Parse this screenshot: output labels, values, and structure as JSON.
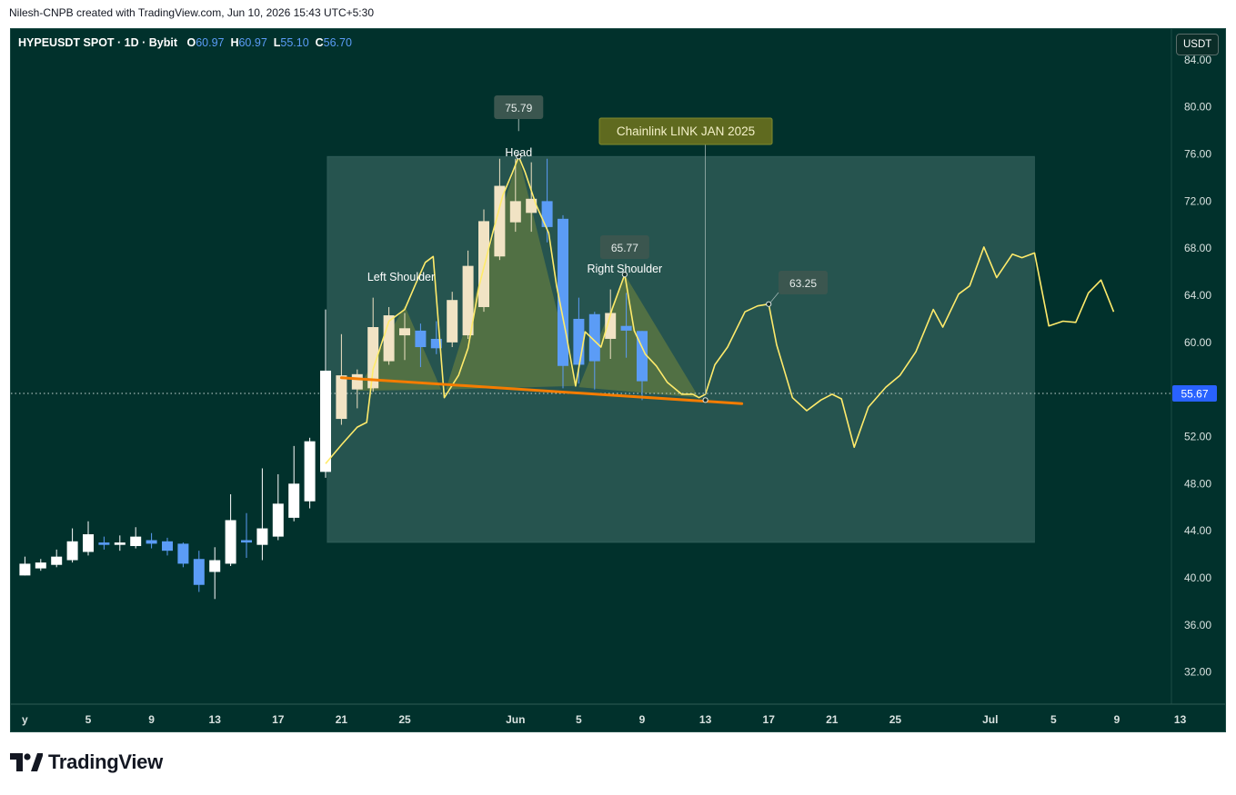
{
  "header": {
    "attribution": "Nilesh-CNPB created with TradingView.com, Jun 10, 2026 15:43 UTC+5:30"
  },
  "legend": {
    "symbol": "HYPEUSDT SPOT · 1D · Bybit",
    "open_label": "O",
    "open": "60.97",
    "high_label": "H",
    "high": "60.97",
    "low_label": "L",
    "low": "55.10",
    "close_label": "C",
    "close": "56.70"
  },
  "currency_button": "USDT",
  "brand": {
    "name": "TradingView"
  },
  "colors": {
    "background": "#01312c",
    "bull_candle": "#ffffff",
    "bear_candle": "#5b9cf6",
    "overlay_candle": "#f1e3c4",
    "overlay_line": "#ffeb6b",
    "neckline": "#f57c00",
    "price_tag": "#2962ff"
  },
  "chart_data": {
    "type": "candlestick",
    "title": "",
    "y_axis": {
      "side": "right",
      "ticks": [
        "84.00",
        "80.00",
        "76.00",
        "72.00",
        "68.00",
        "64.00",
        "60.00",
        "56.00",
        "52.00",
        "48.00",
        "44.00",
        "40.00",
        "36.00",
        "32.00"
      ],
      "range": [
        29.5,
        86
      ]
    },
    "x_axis": {
      "ticks": [
        {
          "label": "y",
          "day": 1
        },
        {
          "label": "5",
          "day": 5
        },
        {
          "label": "9",
          "day": 9
        },
        {
          "label": "13",
          "day": 13
        },
        {
          "label": "17",
          "day": 17
        },
        {
          "label": "21",
          "day": 21
        },
        {
          "label": "25",
          "day": 25
        },
        {
          "label": "Jun",
          "day": 32
        },
        {
          "label": "5",
          "day": 36
        },
        {
          "label": "9",
          "day": 40
        },
        {
          "label": "13",
          "day": 44
        },
        {
          "label": "17",
          "day": 48
        },
        {
          "label": "21",
          "day": 52
        },
        {
          "label": "25",
          "day": 56
        },
        {
          "label": "Jul",
          "day": 62
        },
        {
          "label": "5",
          "day": 66
        },
        {
          "label": "9",
          "day": 70
        },
        {
          "label": "13",
          "day": 74
        }
      ]
    },
    "candles": [
      {
        "day": 1,
        "o": 40.2,
        "h": 41.8,
        "l": 40.2,
        "c": 41.2
      },
      {
        "day": 2,
        "o": 40.8,
        "h": 41.6,
        "l": 40.6,
        "c": 41.3
      },
      {
        "day": 3,
        "o": 41.1,
        "h": 42.4,
        "l": 40.9,
        "c": 41.8
      },
      {
        "day": 4,
        "o": 41.5,
        "h": 44.2,
        "l": 41.3,
        "c": 43.1
      },
      {
        "day": 5,
        "o": 42.2,
        "h": 44.8,
        "l": 41.9,
        "c": 43.7
      },
      {
        "day": 6,
        "o": 43.0,
        "h": 43.5,
        "l": 42.4,
        "c": 42.8
      },
      {
        "day": 7,
        "o": 42.8,
        "h": 43.6,
        "l": 42.3,
        "c": 43.0
      },
      {
        "day": 8,
        "o": 42.7,
        "h": 44.3,
        "l": 42.5,
        "c": 43.5
      },
      {
        "day": 9,
        "o": 43.2,
        "h": 43.8,
        "l": 42.5,
        "c": 42.9
      },
      {
        "day": 10,
        "o": 43.1,
        "h": 43.4,
        "l": 41.9,
        "c": 42.3
      },
      {
        "day": 11,
        "o": 42.9,
        "h": 43.0,
        "l": 40.9,
        "c": 41.2
      },
      {
        "day": 12,
        "o": 41.6,
        "h": 42.3,
        "l": 38.8,
        "c": 39.4
      },
      {
        "day": 13,
        "o": 40.5,
        "h": 42.6,
        "l": 38.2,
        "c": 41.5
      },
      {
        "day": 14,
        "o": 41.2,
        "h": 47.1,
        "l": 41.0,
        "c": 44.9
      },
      {
        "day": 15,
        "o": 43.2,
        "h": 45.5,
        "l": 41.7,
        "c": 43.0
      },
      {
        "day": 16,
        "o": 42.8,
        "h": 49.3,
        "l": 41.5,
        "c": 44.2
      },
      {
        "day": 17,
        "o": 43.5,
        "h": 48.8,
        "l": 43.2,
        "c": 46.3
      },
      {
        "day": 18,
        "o": 45.1,
        "h": 51.2,
        "l": 44.8,
        "c": 48.0
      },
      {
        "day": 19,
        "o": 46.5,
        "h": 51.9,
        "l": 45.9,
        "c": 51.6
      },
      {
        "day": 20,
        "o": 49.0,
        "h": 62.8,
        "l": 48.5,
        "c": 57.6
      },
      {
        "day": 21,
        "o": 53.5,
        "h": 60.7,
        "l": 53.0,
        "c": 57.2
      },
      {
        "day": 22,
        "o": 56.0,
        "h": 57.7,
        "l": 54.4,
        "c": 57.3
      },
      {
        "day": 23,
        "o": 56.1,
        "h": 63.8,
        "l": 55.8,
        "c": 61.3
      },
      {
        "day": 24,
        "o": 58.4,
        "h": 63.0,
        "l": 58.1,
        "c": 62.3
      },
      {
        "day": 25,
        "o": 60.6,
        "h": 62.5,
        "l": 58.5,
        "c": 61.2
      },
      {
        "day": 26,
        "o": 61.0,
        "h": 61.6,
        "l": 57.9,
        "c": 59.6
      },
      {
        "day": 27,
        "o": 60.3,
        "h": 61.8,
        "l": 59.0,
        "c": 59.5
      },
      {
        "day": 28,
        "o": 60.0,
        "h": 64.3,
        "l": 59.6,
        "c": 63.6
      },
      {
        "day": 29,
        "o": 60.6,
        "h": 67.8,
        "l": 60.3,
        "c": 66.5
      },
      {
        "day": 30,
        "o": 63.0,
        "h": 71.3,
        "l": 62.6,
        "c": 70.3
      },
      {
        "day": 31,
        "o": 67.3,
        "h": 75.6,
        "l": 67.0,
        "c": 73.3
      },
      {
        "day": 32,
        "o": 70.2,
        "h": 75.6,
        "l": 69.4,
        "c": 72.0
      },
      {
        "day": 33,
        "o": 71.0,
        "h": 75.3,
        "l": 69.4,
        "c": 72.2
      },
      {
        "day": 34,
        "o": 72.0,
        "h": 75.6,
        "l": 68.5,
        "c": 69.8
      },
      {
        "day": 35,
        "o": 70.5,
        "h": 70.8,
        "l": 56.1,
        "c": 58.0
      },
      {
        "day": 36,
        "o": 62.0,
        "h": 63.8,
        "l": 56.5,
        "c": 58.1
      },
      {
        "day": 37,
        "o": 62.4,
        "h": 62.6,
        "l": 56.0,
        "c": 58.4
      },
      {
        "day": 38,
        "o": 60.3,
        "h": 64.5,
        "l": 58.6,
        "c": 62.5
      },
      {
        "day": 39,
        "o": 61.4,
        "h": 64.2,
        "l": 58.7,
        "c": 61.0
      },
      {
        "day": 40,
        "o": 60.97,
        "h": 60.97,
        "l": 55.1,
        "c": 56.7
      }
    ],
    "overlay_line": [
      {
        "day": 20,
        "v": 49.7
      },
      {
        "day": 21,
        "v": 51.3
      },
      {
        "day": 22,
        "v": 52.8
      },
      {
        "day": 22.6,
        "v": 53.2
      },
      {
        "day": 23,
        "v": 57.7
      },
      {
        "day": 24,
        "v": 61.8
      },
      {
        "day": 25,
        "v": 62.8
      },
      {
        "day": 25.7,
        "v": 65.0
      },
      {
        "day": 26.3,
        "v": 66.8
      },
      {
        "day": 26.8,
        "v": 67.3
      },
      {
        "day": 27.5,
        "v": 55.3
      },
      {
        "day": 28.4,
        "v": 57.2
      },
      {
        "day": 29,
        "v": 59.5
      },
      {
        "day": 29.7,
        "v": 64.8
      },
      {
        "day": 30.6,
        "v": 69.5
      },
      {
        "day": 31.2,
        "v": 72.5
      },
      {
        "day": 31.8,
        "v": 74.4
      },
      {
        "day": 32.2,
        "v": 75.79
      },
      {
        "day": 32.6,
        "v": 74.5
      },
      {
        "day": 33.3,
        "v": 71.7
      },
      {
        "day": 34.1,
        "v": 69.3
      },
      {
        "day": 34.6,
        "v": 64.8
      },
      {
        "day": 35.2,
        "v": 60.7
      },
      {
        "day": 35.8,
        "v": 56.3
      },
      {
        "day": 36.4,
        "v": 60.9
      },
      {
        "day": 37.4,
        "v": 59.6
      },
      {
        "day": 38.1,
        "v": 62.8
      },
      {
        "day": 38.9,
        "v": 65.77
      },
      {
        "day": 39.5,
        "v": 61.0
      },
      {
        "day": 40.2,
        "v": 59.0
      },
      {
        "day": 40.9,
        "v": 58.0
      },
      {
        "day": 41.6,
        "v": 56.6
      },
      {
        "day": 42.5,
        "v": 55.6
      },
      {
        "day": 43.2,
        "v": 55.6
      },
      {
        "day": 43.6,
        "v": 55.3
      },
      {
        "day": 44.0,
        "v": 55.6
      },
      {
        "day": 44.6,
        "v": 58.1
      },
      {
        "day": 45.4,
        "v": 59.6
      },
      {
        "day": 46.5,
        "v": 62.6
      },
      {
        "day": 47.3,
        "v": 63.1
      },
      {
        "day": 48.0,
        "v": 63.25
      },
      {
        "day": 48.5,
        "v": 59.8
      },
      {
        "day": 49.5,
        "v": 55.3
      },
      {
        "day": 50.4,
        "v": 54.2
      },
      {
        "day": 51.3,
        "v": 55.1
      },
      {
        "day": 52.0,
        "v": 55.6
      },
      {
        "day": 52.6,
        "v": 55.2
      },
      {
        "day": 53.4,
        "v": 51.1
      },
      {
        "day": 54.3,
        "v": 54.5
      },
      {
        "day": 55.4,
        "v": 56.2
      },
      {
        "day": 56.3,
        "v": 57.2
      },
      {
        "day": 57.3,
        "v": 59.2
      },
      {
        "day": 58.4,
        "v": 62.8
      },
      {
        "day": 59.0,
        "v": 61.3
      },
      {
        "day": 60.0,
        "v": 64.1
      },
      {
        "day": 60.7,
        "v": 64.8
      },
      {
        "day": 61.6,
        "v": 68.1
      },
      {
        "day": 62.4,
        "v": 65.5
      },
      {
        "day": 63.4,
        "v": 67.5
      },
      {
        "day": 64.0,
        "v": 67.2
      },
      {
        "day": 64.8,
        "v": 67.6
      },
      {
        "day": 65.7,
        "v": 61.4
      },
      {
        "day": 66.6,
        "v": 61.8
      },
      {
        "day": 67.4,
        "v": 61.7
      },
      {
        "day": 68.2,
        "v": 64.2
      },
      {
        "day": 69.0,
        "v": 65.3
      },
      {
        "day": 69.8,
        "v": 62.6
      }
    ],
    "range_box": {
      "day_start": 20.1,
      "day_end": 64.8,
      "top": 75.8,
      "bottom": 43.0
    },
    "neckline": {
      "day_start": 21.0,
      "v_start": 57.0,
      "day_end": 46.3,
      "v_end": 54.8
    },
    "pattern_regions": [
      {
        "name": "Left Shoulder",
        "points": [
          [
            22,
            55.9
          ],
          [
            25,
            63.1
          ],
          [
            27.3,
            56.0
          ]
        ]
      },
      {
        "name": "Head",
        "points": [
          [
            27.6,
            56.0
          ],
          [
            32.2,
            75.79
          ],
          [
            35.8,
            56.3
          ]
        ]
      },
      {
        "name": "Right Shoulder",
        "points": [
          [
            36,
            56.2
          ],
          [
            38.9,
            65.77
          ],
          [
            43.6,
            55.3
          ]
        ]
      }
    ],
    "annotations": {
      "head_label": "Head",
      "head_value": "75.79",
      "left_shoulder_label": "Left Shoulder",
      "right_shoulder_label": "Right Shoulder",
      "right_shoulder_value": "65.77",
      "projection_value": "63.25",
      "reference_label": "Chainlink LINK JAN 2025"
    },
    "current_price": {
      "value": 55.67,
      "label": "55.67"
    }
  }
}
